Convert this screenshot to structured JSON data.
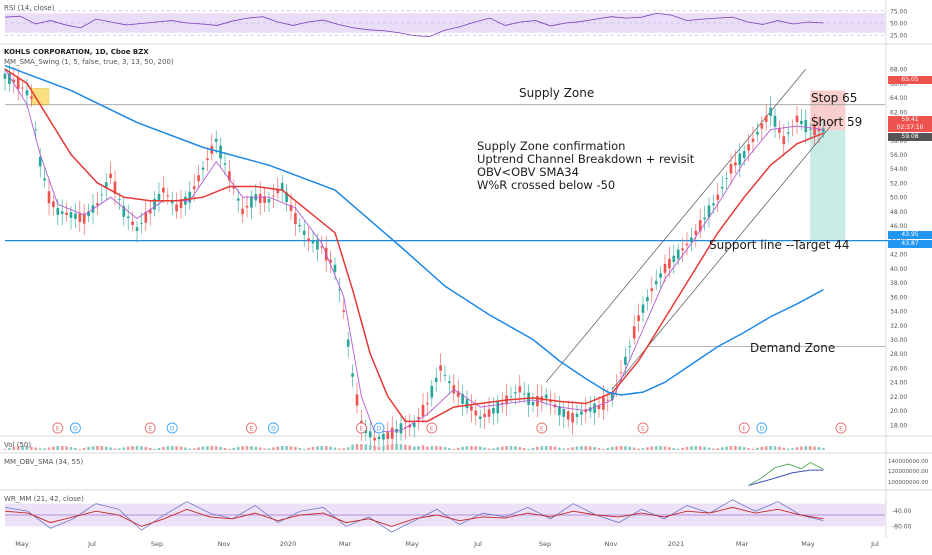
{
  "chart_data": {
    "type": "candlestick",
    "ticker_label": "KOHLS CORPORATION, 1D, Cboe BZX",
    "indicator_label": "MM_SMA_Swing (1, 5, false, true, 3, 13, 50, 200)",
    "x_labels": [
      "May",
      "Jul",
      "Sep",
      "Nov",
      "2020",
      "Mar",
      "May",
      "Jul",
      "Sep",
      "Nov",
      "2021",
      "Mar",
      "May",
      "Jul"
    ],
    "y_ticks": [
      18.0,
      20.0,
      22.0,
      24.0,
      26.0,
      28.0,
      30.0,
      32.0,
      34.0,
      36.0,
      38.0,
      40.0,
      42.0,
      44.0,
      46.0,
      48.0,
      50.0,
      52.0,
      54.0,
      56.0,
      58.0,
      60.0,
      62.0,
      64.0,
      66.0,
      68.0
    ],
    "ylim": [
      17,
      69
    ],
    "price_tags": [
      {
        "value": "65.05",
        "color": "#ef5350"
      },
      {
        "value": "59.41",
        "color": "#ef5350"
      },
      {
        "value": "02:37:10",
        "color": "#ef5350"
      },
      {
        "value": "59.08",
        "color": "#555555"
      },
      {
        "value": "43.95",
        "color": "#2196f3"
      },
      {
        "value": "43.87",
        "color": "#2196f3"
      }
    ],
    "price_path": [
      [
        0,
        67
      ],
      [
        3,
        66
      ],
      [
        6,
        64
      ],
      [
        8,
        55
      ],
      [
        10,
        50
      ],
      [
        12,
        48
      ],
      [
        15,
        47.5
      ],
      [
        18,
        47
      ],
      [
        21,
        49
      ],
      [
        24,
        53
      ],
      [
        27,
        48
      ],
      [
        30,
        45.5
      ],
      [
        33,
        48
      ],
      [
        36,
        51
      ],
      [
        39,
        48.5
      ],
      [
        42,
        50
      ],
      [
        45,
        54
      ],
      [
        48,
        58
      ],
      [
        51,
        53
      ],
      [
        54,
        48
      ],
      [
        57,
        50
      ],
      [
        60,
        49.5
      ],
      [
        63,
        51.5
      ],
      [
        66,
        47
      ],
      [
        69,
        44
      ],
      [
        72,
        43
      ],
      [
        75,
        40
      ],
      [
        77,
        34
      ],
      [
        79,
        25
      ],
      [
        81,
        18
      ],
      [
        84,
        16
      ],
      [
        87,
        16.5
      ],
      [
        90,
        17.5
      ],
      [
        93,
        18
      ],
      [
        96,
        21
      ],
      [
        99,
        26
      ],
      [
        102,
        23
      ],
      [
        105,
        21
      ],
      [
        108,
        19
      ],
      [
        111,
        20
      ],
      [
        114,
        21.5
      ],
      [
        117,
        23
      ],
      [
        120,
        21
      ],
      [
        123,
        22
      ],
      [
        126,
        20
      ],
      [
        129,
        19
      ],
      [
        132,
        20
      ],
      [
        135,
        20.5
      ],
      [
        138,
        22
      ],
      [
        141,
        27
      ],
      [
        144,
        33
      ],
      [
        147,
        37
      ],
      [
        150,
        40
      ],
      [
        153,
        42
      ],
      [
        156,
        44
      ],
      [
        159,
        47
      ],
      [
        162,
        50
      ],
      [
        165,
        54
      ],
      [
        168,
        56
      ],
      [
        171,
        59
      ],
      [
        174,
        62
      ],
      [
        177,
        58
      ],
      [
        180,
        61
      ],
      [
        183,
        59.5
      ],
      [
        186,
        59.4
      ]
    ],
    "series": [
      {
        "name": "MA-fast",
        "color": "#b35ad6",
        "points": [
          [
            0,
            68
          ],
          [
            5,
            63
          ],
          [
            8,
            56
          ],
          [
            12,
            49
          ],
          [
            18,
            47.5
          ],
          [
            24,
            50
          ],
          [
            30,
            47
          ],
          [
            36,
            49.5
          ],
          [
            42,
            49.5
          ],
          [
            48,
            55
          ],
          [
            54,
            50
          ],
          [
            60,
            50
          ],
          [
            66,
            48.5
          ],
          [
            72,
            43.5
          ],
          [
            77,
            36
          ],
          [
            81,
            22
          ],
          [
            84,
            17
          ],
          [
            90,
            17.2
          ],
          [
            96,
            19.5
          ],
          [
            102,
            23
          ],
          [
            108,
            20.5
          ],
          [
            114,
            21
          ],
          [
            120,
            21.5
          ],
          [
            126,
            20.5
          ],
          [
            132,
            20
          ],
          [
            138,
            21.5
          ],
          [
            144,
            30
          ],
          [
            150,
            38.5
          ],
          [
            156,
            43.5
          ],
          [
            162,
            49
          ],
          [
            168,
            55
          ],
          [
            174,
            59.5
          ],
          [
            180,
            60
          ],
          [
            186,
            59.5
          ]
        ]
      },
      {
        "name": "MA-mid",
        "color": "#e53935",
        "points": [
          [
            0,
            68
          ],
          [
            5,
            66
          ],
          [
            10,
            61
          ],
          [
            15,
            56
          ],
          [
            21,
            52
          ],
          [
            27,
            50
          ],
          [
            33,
            49.5
          ],
          [
            39,
            49.5
          ],
          [
            45,
            50
          ],
          [
            51,
            51.5
          ],
          [
            57,
            51.5
          ],
          [
            63,
            51
          ],
          [
            69,
            48
          ],
          [
            75,
            45
          ],
          [
            79,
            37
          ],
          [
            83,
            28
          ],
          [
            87,
            22
          ],
          [
            91,
            18.5
          ],
          [
            96,
            18.5
          ],
          [
            102,
            20.5
          ],
          [
            108,
            21
          ],
          [
            114,
            21.5
          ],
          [
            120,
            21.8
          ],
          [
            126,
            21.3
          ],
          [
            132,
            21
          ],
          [
            138,
            22.5
          ],
          [
            144,
            27
          ],
          [
            150,
            33
          ],
          [
            156,
            39
          ],
          [
            162,
            45
          ],
          [
            168,
            50
          ],
          [
            174,
            54.5
          ],
          [
            180,
            57.5
          ],
          [
            186,
            59
          ]
        ]
      },
      {
        "name": "MA-slow",
        "color": "#1e88e5",
        "points": [
          [
            0,
            68.5
          ],
          [
            15,
            65
          ],
          [
            30,
            60.5
          ],
          [
            45,
            57
          ],
          [
            60,
            54.5
          ],
          [
            75,
            51
          ],
          [
            90,
            43
          ],
          [
            100,
            37.5
          ],
          [
            110,
            33.5
          ],
          [
            120,
            30
          ],
          [
            126,
            27
          ],
          [
            132,
            24.5
          ],
          [
            137,
            22.6
          ],
          [
            140,
            22.2
          ],
          [
            145,
            22.6
          ],
          [
            150,
            24
          ],
          [
            156,
            26.5
          ],
          [
            162,
            29
          ],
          [
            168,
            31
          ],
          [
            174,
            33.2
          ],
          [
            180,
            35
          ],
          [
            186,
            37
          ]
        ]
      }
    ],
    "channel_lines": [
      {
        "from": [
          123,
          24
        ],
        "to": [
          182,
          68
        ]
      },
      {
        "from": [
          138,
          23
        ],
        "to": [
          189,
          61
        ]
      }
    ],
    "horizontal_lines": [
      {
        "y": 63,
        "color": "#9e9e9e",
        "from": 0
      },
      {
        "y": 43.9,
        "color": "#1e88e5",
        "from": 0
      },
      {
        "y": 29,
        "color": "#9e9e9e",
        "from": 146
      }
    ],
    "highlight_box": {
      "x0": 6,
      "x1": 10,
      "y0": 63,
      "y1": 65.3,
      "color": "#f5c518"
    },
    "short_position": {
      "x0": 183,
      "x1": 191,
      "entry": 59.4,
      "stop": 65,
      "target": 44
    },
    "events": [
      {
        "x": 12,
        "letter": "E"
      },
      {
        "x": 16,
        "letter": "D"
      },
      {
        "x": 33,
        "letter": "E"
      },
      {
        "x": 38,
        "letter": "D"
      },
      {
        "x": 56,
        "letter": "E"
      },
      {
        "x": 61,
        "letter": "D"
      },
      {
        "x": 81,
        "letter": "E"
      },
      {
        "x": 85,
        "letter": "D"
      },
      {
        "x": 97,
        "letter": "E"
      },
      {
        "x": 122,
        "letter": "E"
      },
      {
        "x": 145,
        "letter": "E"
      },
      {
        "x": 168,
        "letter": "E"
      },
      {
        "x": 172,
        "letter": "D"
      },
      {
        "x": 190,
        "letter": "E"
      }
    ],
    "annotations": {
      "supply_zone": "Supply Zone",
      "stop": "Stop 65",
      "short": "Short 59",
      "reasons": [
        "Supply Zone confirmation",
        "Uptrend Channel Breakdown + revisit",
        "OBV<OBV SMA34",
        "W%R  crossed below -50"
      ],
      "support": "Support line --Target 44",
      "demand_zone": "Demand Zone"
    },
    "rsi": {
      "label": "RSI (14, close)",
      "y_ticks": [
        25.0,
        50.0,
        75.0
      ],
      "ylim": [
        15,
        85
      ],
      "band": [
        30,
        70
      ],
      "values": [
        62,
        64,
        48,
        55,
        46,
        40,
        58,
        52,
        46,
        49,
        52,
        55,
        50,
        48,
        45,
        54,
        60,
        63,
        52,
        45,
        52,
        56,
        47,
        40,
        36,
        34,
        30,
        24,
        22,
        35,
        42,
        52,
        60,
        45,
        52,
        55,
        44,
        50,
        53,
        58,
        63,
        60,
        62,
        70,
        66,
        55,
        58,
        60,
        62,
        52,
        47,
        55,
        48,
        52,
        50
      ]
    },
    "volume": {
      "label": "Vol (50)"
    },
    "obv": {
      "label": "MM_OBV_SMA (34, 55)",
      "y_ticks": [
        "140000000.00",
        "120000000.00",
        "100000000.00"
      ],
      "line": [
        [
          169,
          1.0
        ],
        [
          172,
          1.15
        ],
        [
          175,
          1.35
        ],
        [
          178,
          1.42
        ],
        [
          181,
          1.33
        ],
        [
          183,
          1.45
        ],
        [
          186,
          1.32
        ]
      ],
      "sma": [
        [
          169,
          1.0
        ],
        [
          174,
          1.12
        ],
        [
          179,
          1.25
        ],
        [
          183,
          1.3
        ],
        [
          186,
          1.3
        ]
      ]
    },
    "williams": {
      "label": "WR_MM (21, 42, close)",
      "y_ticks": [
        "-40.00",
        "-80.00"
      ],
      "ylim": [
        -100,
        0
      ],
      "band": [
        -20,
        -80
      ],
      "blue": [
        -30,
        -40,
        -85,
        -60,
        -20,
        -35,
        -90,
        -50,
        -15,
        -45,
        -60,
        -25,
        -70,
        -40,
        -30,
        -80,
        -55,
        -95,
        -65,
        -35,
        -75,
        -45,
        -55,
        -30,
        -60,
        -20,
        -50,
        -70,
        -35,
        -60,
        -25,
        -45,
        -10,
        -40,
        -15,
        -50,
        -65
      ],
      "red": [
        -40,
        -45,
        -70,
        -55,
        -40,
        -50,
        -80,
        -60,
        -35,
        -55,
        -60,
        -45,
        -65,
        -50,
        -45,
        -70,
        -60,
        -80,
        -60,
        -50,
        -65,
        -55,
        -58,
        -45,
        -55,
        -40,
        -50,
        -55,
        -45,
        -55,
        -40,
        -45,
        -30,
        -45,
        -35,
        -50,
        -60
      ]
    }
  }
}
